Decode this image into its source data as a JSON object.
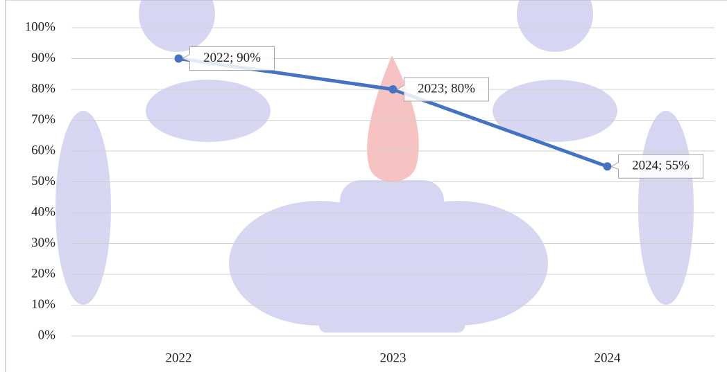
{
  "chart_data": {
    "type": "line",
    "categories": [
      "2022",
      "2023",
      "2024"
    ],
    "series": [
      {
        "values": [
          90,
          80,
          55
        ],
        "value_labels": [
          "2022; 90%",
          "2023; 80%",
          "2024; 55%"
        ],
        "color": "#4472c4"
      }
    ],
    "ylim": [
      0,
      100
    ],
    "yticks": [
      {
        "value": 0,
        "label": "0%"
      },
      {
        "value": 10,
        "label": "10%"
      },
      {
        "value": 20,
        "label": "20%"
      },
      {
        "value": 30,
        "label": "30%"
      },
      {
        "value": 40,
        "label": "40%"
      },
      {
        "value": 50,
        "label": "50%"
      },
      {
        "value": 60,
        "label": "60%"
      },
      {
        "value": 70,
        "label": "70%"
      },
      {
        "value": 80,
        "label": "80%"
      },
      {
        "value": 90,
        "label": "90%"
      },
      {
        "value": 100,
        "label": "100%"
      }
    ],
    "grid": true
  }
}
